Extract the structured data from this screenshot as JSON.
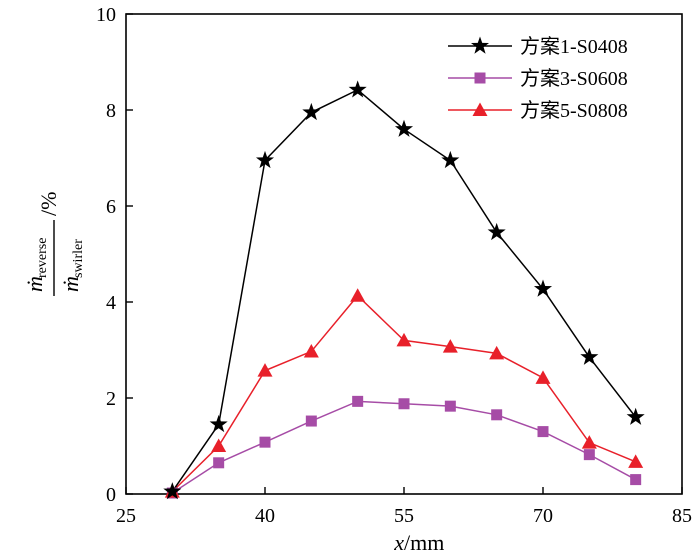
{
  "chart_data": {
    "type": "line",
    "title": "",
    "xlabel": "x/mm",
    "xlabel_var": "x",
    "xlabel_unit": "/mm",
    "ylabel": {
      "numerator_symbol": "ṁ",
      "numerator_sub": "reverse",
      "denominator_symbol": "ṁ",
      "denominator_sub": "swirler",
      "unit": "/%"
    },
    "xlim": [
      25,
      85
    ],
    "ylim": [
      0,
      10
    ],
    "xticks": [
      25,
      40,
      55,
      70,
      85
    ],
    "yticks": [
      0,
      2,
      4,
      6,
      8,
      10
    ],
    "grid": false,
    "legend_position": "top-right",
    "series": [
      {
        "name": "方案1-S0408",
        "color": "#000000",
        "marker": "star",
        "x": [
          30,
          35,
          40,
          45,
          50,
          55,
          60,
          65,
          70,
          75,
          80
        ],
        "values": [
          0.05,
          1.45,
          6.95,
          7.95,
          8.42,
          7.6,
          6.95,
          5.45,
          4.27,
          2.85,
          1.6
        ]
      },
      {
        "name": "方案3-S0608",
        "color": "#a64ca6",
        "marker": "square",
        "x": [
          30,
          35,
          40,
          45,
          50,
          55,
          60,
          65,
          70,
          75,
          80
        ],
        "values": [
          0.02,
          0.65,
          1.08,
          1.52,
          1.93,
          1.88,
          1.83,
          1.65,
          1.3,
          0.82,
          0.3
        ]
      },
      {
        "name": "方案5-S0808",
        "color": "#e8202a",
        "marker": "triangle",
        "x": [
          30,
          35,
          40,
          45,
          50,
          55,
          60,
          65,
          70,
          75,
          80
        ],
        "values": [
          0.05,
          1.0,
          2.57,
          2.97,
          4.13,
          3.2,
          3.07,
          2.93,
          2.42,
          1.07,
          0.67
        ]
      }
    ]
  }
}
